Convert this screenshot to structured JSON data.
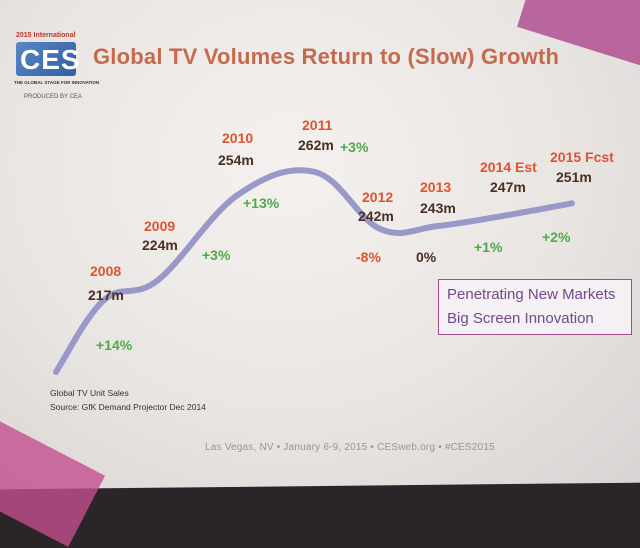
{
  "logo": {
    "year_text": "2015 International",
    "brand": "CES",
    "tagline": "THE GLOBAL STAGE FOR INNOVATION",
    "sponsor": "PRODUCED BY CEA"
  },
  "title": "Global TV Volumes Return to (Slow) Growth",
  "chart_data": {
    "type": "line",
    "title": "Global TV Volumes Return to (Slow) Growth",
    "xlabel": "",
    "ylabel": "",
    "categories": [
      "2008",
      "2009",
      "2010",
      "2011",
      "2012",
      "2013",
      "2014 Est",
      "2015 Fcst"
    ],
    "value_labels": [
      "217m",
      "224m",
      "254m",
      "262m",
      "242m",
      "243m",
      "247m",
      "251m"
    ],
    "change_labels": [
      "+14%",
      "+3%",
      "+13%",
      "+3%",
      "-8%",
      "0%",
      "+1%",
      "+2%"
    ],
    "series": [
      {
        "values": [
          217,
          224,
          254,
          262,
          242,
          243,
          247,
          251
        ]
      }
    ],
    "line_color": "#9a97c9",
    "year_color": "#e0532f",
    "positive_color": "#4faa47",
    "negative_color": "#e0532f",
    "grid": false
  },
  "callout": {
    "line1": "Penetrating New Markets",
    "line2": "Big Screen Innovation"
  },
  "notes": {
    "line1": "Global TV Unit Sales",
    "line2": "Source: GfK Demand Projector Dec 2014"
  },
  "footer": "Las Vegas, NV  •  January 6-9, 2015  •  CESweb.org  •  #CES2015"
}
